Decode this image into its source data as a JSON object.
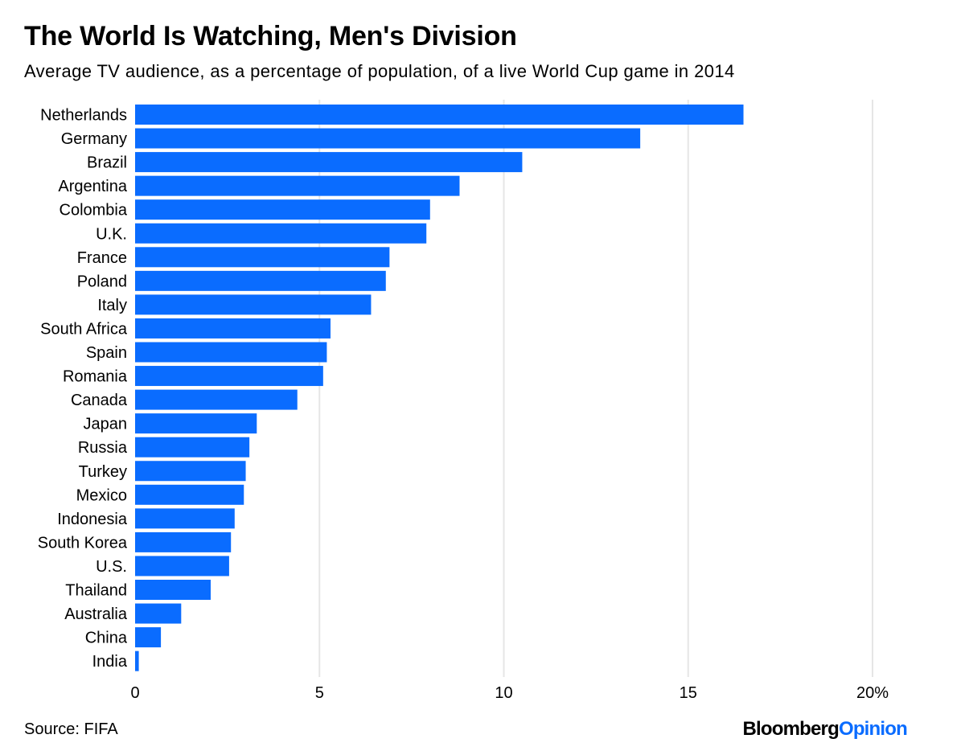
{
  "title": "The World Is Watching, Men's Division",
  "subtitle": "Average TV audience, as a percentage of population, of a live World Cup game in 2014",
  "source": "Source: FIFA",
  "logo": {
    "brand": "Bloomberg",
    "product": "Opinion"
  },
  "colors": {
    "bar": "#0a6cff",
    "grid": "#e6e6e6",
    "logo_accent": "#0a6cff"
  },
  "chart_data": {
    "type": "bar",
    "orientation": "horizontal",
    "categories": [
      "Netherlands",
      "Germany",
      "Brazil",
      "Argentina",
      "Colombia",
      "U.K.",
      "France",
      "Poland",
      "Italy",
      "South Africa",
      "Spain",
      "Romania",
      "Canada",
      "Japan",
      "Russia",
      "Turkey",
      "Mexico",
      "Indonesia",
      "South Korea",
      "U.S.",
      "Thailand",
      "Australia",
      "China",
      "India"
    ],
    "values": [
      16.5,
      13.7,
      10.5,
      8.8,
      8.0,
      7.9,
      6.9,
      6.8,
      6.4,
      5.3,
      5.2,
      5.1,
      4.4,
      3.3,
      3.1,
      3.0,
      2.95,
      2.7,
      2.6,
      2.55,
      2.05,
      1.25,
      0.7,
      0.1
    ],
    "xlim": [
      0,
      20
    ],
    "xticks": [
      0,
      5,
      10,
      15,
      20
    ],
    "xtick_labels": [
      "0",
      "5",
      "10",
      "15",
      "20%"
    ],
    "grid": true
  }
}
